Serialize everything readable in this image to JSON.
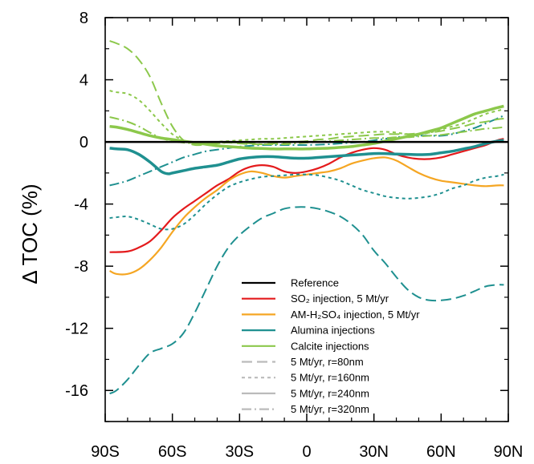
{
  "chart_data": {
    "type": "line",
    "ylabel": "Δ TOC (%)",
    "xlim": [
      -90,
      90
    ],
    "ylim": [
      -18,
      8
    ],
    "x_ticks": [
      {
        "value": -90,
        "label": "90S"
      },
      {
        "value": -60,
        "label": "60S"
      },
      {
        "value": -30,
        "label": "30S"
      },
      {
        "value": 0,
        "label": "0"
      },
      {
        "value": 30,
        "label": "30N"
      },
      {
        "value": 60,
        "label": "60N"
      },
      {
        "value": 90,
        "label": "90N"
      }
    ],
    "y_ticks": [
      {
        "value": 8,
        "label": "8"
      },
      {
        "value": 4,
        "label": "4"
      },
      {
        "value": 0,
        "label": "0"
      },
      {
        "value": -4,
        "label": "-4"
      },
      {
        "value": -8,
        "label": "-8"
      },
      {
        "value": -12,
        "label": "-12"
      },
      {
        "value": -16,
        "label": "-16"
      }
    ],
    "legend": {
      "placement": "bottom-right",
      "entries": [
        {
          "label": "Reference",
          "color": "#000000",
          "dash": "solid"
        },
        {
          "label": "SO₂ injection, 5 Mt/yr",
          "color": "#e41a1c",
          "dash": "solid"
        },
        {
          "label": "AM-H₂SO₄ injection, 5 Mt/yr",
          "color": "#f5a623",
          "dash": "solid"
        },
        {
          "label": "Alumina injections",
          "color": "#1f9090",
          "dash": "solid"
        },
        {
          "label": "Calcite injections",
          "color": "#8cc84b",
          "dash": "solid"
        },
        {
          "label": "5 Mt/yr, r=80nm",
          "color": "#bbbbbb",
          "dash": "long-dash"
        },
        {
          "label": "5 Mt/yr, r=160nm",
          "color": "#bbbbbb",
          "dash": "short-dash"
        },
        {
          "label": "5 Mt/yr, r=240nm",
          "color": "#bbbbbb",
          "dash": "solid"
        },
        {
          "label": "5 Mt/yr, r=320nm",
          "color": "#bbbbbb",
          "dash": "dash-dot"
        }
      ]
    },
    "series": [
      {
        "name": "Reference",
        "color": "#000000",
        "dash": "solid",
        "width": 2.5,
        "x": [
          -90,
          90
        ],
        "y": [
          0,
          0
        ]
      },
      {
        "name": "SO₂ injection, 5 Mt/yr",
        "color": "#e41a1c",
        "dash": "solid",
        "width": 2.2,
        "x": [
          -88,
          -80,
          -75,
          -70,
          -65,
          -60,
          -55,
          -50,
          -45,
          -40,
          -35,
          -30,
          -25,
          -20,
          -15,
          -10,
          -5,
          0,
          5,
          10,
          15,
          20,
          25,
          30,
          35,
          40,
          45,
          50,
          55,
          60,
          65,
          70,
          75,
          80,
          85,
          88
        ],
        "y": [
          -7.1,
          -7.05,
          -6.8,
          -6.4,
          -5.7,
          -4.9,
          -4.3,
          -3.8,
          -3.3,
          -2.8,
          -2.4,
          -1.9,
          -1.6,
          -1.5,
          -1.6,
          -1.9,
          -2.0,
          -1.9,
          -1.7,
          -1.4,
          -1.0,
          -0.7,
          -0.5,
          -0.4,
          -0.5,
          -0.8,
          -1.0,
          -1.1,
          -1.1,
          -1.0,
          -0.8,
          -0.6,
          -0.4,
          -0.2,
          0.1,
          0.2
        ]
      },
      {
        "name": "AM-H₂SO₄ injection, 5 Mt/yr",
        "color": "#f5a623",
        "dash": "solid",
        "width": 2.2,
        "x": [
          -88,
          -85,
          -80,
          -75,
          -70,
          -65,
          -60,
          -55,
          -50,
          -45,
          -40,
          -35,
          -30,
          -25,
          -20,
          -15,
          -10,
          -5,
          0,
          5,
          10,
          15,
          20,
          25,
          30,
          35,
          40,
          45,
          50,
          55,
          60,
          65,
          70,
          75,
          80,
          85,
          88
        ],
        "y": [
          -8.3,
          -8.5,
          -8.5,
          -8.2,
          -7.6,
          -6.8,
          -5.8,
          -4.9,
          -4.2,
          -3.6,
          -3.1,
          -2.5,
          -2.1,
          -1.9,
          -2.0,
          -2.2,
          -2.3,
          -2.2,
          -2.1,
          -2.0,
          -1.9,
          -1.7,
          -1.4,
          -1.2,
          -1.05,
          -1.0,
          -1.2,
          -1.6,
          -2.0,
          -2.3,
          -2.5,
          -2.6,
          -2.7,
          -2.8,
          -2.85,
          -2.8,
          -2.8
        ]
      },
      {
        "name": "Alumina r=80nm",
        "color": "#1f9090",
        "dash": "long-dash",
        "width": 2.0,
        "x": [
          -88,
          -85,
          -80,
          -75,
          -70,
          -65,
          -60,
          -55,
          -50,
          -45,
          -40,
          -35,
          -30,
          -25,
          -20,
          -15,
          -10,
          -5,
          0,
          5,
          10,
          15,
          20,
          25,
          30,
          35,
          40,
          45,
          50,
          55,
          60,
          65,
          70,
          75,
          80,
          85,
          88
        ],
        "y": [
          -16.2,
          -16.0,
          -15.3,
          -14.4,
          -13.6,
          -13.3,
          -13.0,
          -12.3,
          -11.0,
          -9.5,
          -8.0,
          -6.8,
          -6.0,
          -5.4,
          -4.9,
          -4.6,
          -4.3,
          -4.2,
          -4.2,
          -4.3,
          -4.5,
          -4.8,
          -5.3,
          -6.0,
          -7.0,
          -7.8,
          -8.7,
          -9.5,
          -10.0,
          -10.2,
          -10.2,
          -10.1,
          -9.9,
          -9.6,
          -9.3,
          -9.2,
          -9.2
        ]
      },
      {
        "name": "Alumina r=160nm",
        "color": "#1f9090",
        "dash": "short-dash",
        "width": 2.0,
        "x": [
          -88,
          -85,
          -80,
          -75,
          -70,
          -65,
          -60,
          -55,
          -50,
          -45,
          -40,
          -35,
          -30,
          -25,
          -20,
          -15,
          -10,
          -5,
          0,
          5,
          10,
          15,
          20,
          25,
          30,
          35,
          40,
          45,
          50,
          55,
          60,
          65,
          70,
          75,
          80,
          85,
          88
        ],
        "y": [
          -4.9,
          -4.85,
          -4.8,
          -5.0,
          -5.3,
          -5.6,
          -5.6,
          -5.3,
          -4.7,
          -4.0,
          -3.4,
          -2.9,
          -2.6,
          -2.4,
          -2.25,
          -2.2,
          -2.15,
          -2.1,
          -2.1,
          -2.15,
          -2.3,
          -2.5,
          -2.8,
          -3.1,
          -3.3,
          -3.5,
          -3.6,
          -3.65,
          -3.6,
          -3.5,
          -3.3,
          -3.0,
          -2.8,
          -2.5,
          -2.3,
          -2.2,
          -2.1
        ]
      },
      {
        "name": "Alumina r=240nm",
        "color": "#1f9090",
        "dash": "solid",
        "width": 3.5,
        "x": [
          -88,
          -85,
          -80,
          -75,
          -70,
          -65,
          -62,
          -60,
          -55,
          -50,
          -45,
          -40,
          -35,
          -30,
          -25,
          -20,
          -15,
          -10,
          -5,
          0,
          5,
          10,
          15,
          20,
          25,
          30,
          35,
          40,
          45,
          50,
          55,
          60,
          65,
          70,
          75,
          80,
          85,
          88
        ],
        "y": [
          -0.4,
          -0.45,
          -0.5,
          -0.8,
          -1.3,
          -1.9,
          -2.05,
          -2.0,
          -1.85,
          -1.7,
          -1.6,
          -1.5,
          -1.3,
          -1.1,
          -1.0,
          -0.95,
          -0.95,
          -1.0,
          -1.05,
          -1.05,
          -1.0,
          -0.95,
          -0.9,
          -0.85,
          -0.8,
          -0.75,
          -0.75,
          -0.78,
          -0.8,
          -0.82,
          -0.8,
          -0.7,
          -0.6,
          -0.45,
          -0.3,
          -0.1,
          0.05,
          0.1
        ]
      },
      {
        "name": "Alumina r=320nm",
        "color": "#1f9090",
        "dash": "dash-dot",
        "width": 2.0,
        "x": [
          -88,
          -85,
          -80,
          -75,
          -70,
          -65,
          -60,
          -55,
          -50,
          -45,
          -40,
          -35,
          -30,
          -25,
          -20,
          -15,
          -10,
          -5,
          0,
          5,
          10,
          15,
          20,
          25,
          30,
          35,
          40,
          45,
          50,
          55,
          60,
          65,
          70,
          75,
          80,
          85,
          88
        ],
        "y": [
          -2.8,
          -2.7,
          -2.5,
          -2.2,
          -1.9,
          -1.6,
          -1.3,
          -1.0,
          -0.8,
          -0.6,
          -0.5,
          -0.4,
          -0.3,
          -0.25,
          -0.2,
          -0.2,
          -0.2,
          -0.2,
          -0.2,
          -0.18,
          -0.15,
          -0.1,
          -0.05,
          0.0,
          0.1,
          0.2,
          0.3,
          0.35,
          0.4,
          0.4,
          0.4,
          0.5,
          0.7,
          0.9,
          1.2,
          1.5,
          1.7
        ]
      },
      {
        "name": "Calcite r=80nm",
        "color": "#8cc84b",
        "dash": "long-dash",
        "width": 2.0,
        "x": [
          -88,
          -85,
          -80,
          -75,
          -70,
          -65,
          -60,
          -55,
          -50,
          -45,
          -40,
          -35,
          -30,
          -25,
          -20,
          -15,
          -10,
          -5,
          0,
          5,
          10,
          15,
          20,
          25,
          30,
          35,
          40,
          45,
          50,
          55,
          60,
          65,
          70,
          75,
          80,
          85,
          88
        ],
        "y": [
          6.5,
          6.35,
          6.0,
          5.3,
          4.2,
          2.5,
          1.0,
          0.1,
          -0.2,
          -0.15,
          -0.05,
          -0.05,
          -0.1,
          -0.15,
          -0.15,
          -0.1,
          -0.05,
          0.0,
          0.05,
          0.15,
          0.2,
          0.3,
          0.35,
          0.4,
          0.45,
          0.5,
          0.5,
          0.5,
          0.55,
          0.6,
          0.7,
          0.85,
          1.0,
          1.2,
          1.3,
          1.45,
          1.5
        ]
      },
      {
        "name": "Calcite r=160nm",
        "color": "#8cc84b",
        "dash": "short-dash",
        "width": 2.0,
        "x": [
          -88,
          -85,
          -80,
          -75,
          -70,
          -65,
          -60,
          -55,
          -50,
          -45,
          -40,
          -35,
          -30,
          -25,
          -20,
          -15,
          -10,
          -5,
          0,
          5,
          10,
          15,
          20,
          25,
          30,
          35,
          40,
          45,
          50,
          55,
          60,
          65,
          70,
          75,
          80,
          85,
          88
        ],
        "y": [
          3.3,
          3.2,
          3.1,
          2.7,
          2.0,
          1.2,
          0.5,
          0.1,
          -0.1,
          -0.1,
          0.0,
          0.05,
          0.1,
          0.15,
          0.2,
          0.2,
          0.25,
          0.3,
          0.35,
          0.4,
          0.45,
          0.5,
          0.55,
          0.6,
          0.65,
          0.65,
          0.6,
          0.5,
          0.5,
          0.6,
          0.8,
          1.0,
          1.2,
          1.5,
          1.8,
          2.0,
          2.1
        ]
      },
      {
        "name": "Calcite r=240nm",
        "color": "#8cc84b",
        "dash": "solid",
        "width": 3.5,
        "x": [
          -88,
          -85,
          -80,
          -75,
          -70,
          -65,
          -60,
          -55,
          -50,
          -45,
          -40,
          -35,
          -30,
          -25,
          -20,
          -15,
          -10,
          -5,
          0,
          5,
          10,
          15,
          20,
          25,
          30,
          35,
          40,
          45,
          50,
          55,
          60,
          65,
          70,
          75,
          80,
          85,
          88
        ],
        "y": [
          1.0,
          0.95,
          0.8,
          0.6,
          0.4,
          0.25,
          0.15,
          0.05,
          -0.05,
          -0.15,
          -0.25,
          -0.3,
          -0.35,
          -0.4,
          -0.42,
          -0.45,
          -0.45,
          -0.45,
          -0.45,
          -0.42,
          -0.4,
          -0.35,
          -0.3,
          -0.2,
          -0.1,
          0.05,
          0.2,
          0.35,
          0.5,
          0.7,
          0.9,
          1.2,
          1.5,
          1.8,
          2.0,
          2.2,
          2.3
        ]
      },
      {
        "name": "Calcite r=320nm",
        "color": "#8cc84b",
        "dash": "dash-dot",
        "width": 2.0,
        "x": [
          -88,
          -85,
          -80,
          -75,
          -70,
          -65,
          -60,
          -55,
          -50,
          -45,
          -40,
          -35,
          -30,
          -25,
          -20,
          -15,
          -10,
          -5,
          0,
          5,
          10,
          15,
          20,
          25,
          30,
          35,
          40,
          45,
          50,
          55,
          60,
          65,
          70,
          75,
          80,
          85,
          88
        ],
        "y": [
          1.6,
          1.5,
          1.3,
          1.0,
          0.6,
          0.25,
          0.05,
          -0.05,
          -0.1,
          -0.12,
          -0.1,
          -0.05,
          -0.05,
          -0.1,
          -0.15,
          -0.15,
          -0.15,
          -0.1,
          -0.05,
          0.0,
          0.05,
          0.1,
          0.15,
          0.2,
          0.25,
          0.25,
          0.3,
          0.3,
          0.35,
          0.4,
          0.45,
          0.55,
          0.65,
          0.75,
          0.85,
          0.9,
          0.95
        ]
      }
    ]
  }
}
